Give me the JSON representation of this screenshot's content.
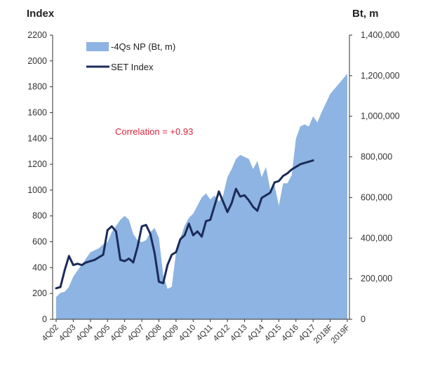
{
  "chart_data": {
    "type": "area+line",
    "left_axis_title": "Index",
    "right_axis_title": "Bt, m",
    "left_ylim": [
      0,
      2200
    ],
    "left_ticks": [
      0,
      200,
      400,
      600,
      800,
      1000,
      1200,
      1400,
      1600,
      1800,
      2000,
      2200
    ],
    "right_ylim": [
      0,
      1400000
    ],
    "right_ticks": [
      0,
      200000,
      400000,
      600000,
      800000,
      1000000,
      1200000,
      1400000
    ],
    "right_tick_labels": [
      "0",
      "200,000",
      "400,000",
      "600,000",
      "800,000",
      "1,000,000",
      "1,200,000",
      "1,400,000"
    ],
    "x_labels": [
      "4Q02",
      "4Q03",
      "4Q04",
      "4Q05",
      "4Q06",
      "4Q07",
      "4Q08",
      "4Q09",
      "4Q10",
      "4Q11",
      "4Q12",
      "4Q13",
      "4Q14",
      "4Q15",
      "4Q16",
      "4Q17",
      "2018F",
      "2019F"
    ],
    "annotation": "Correlation = +0.93",
    "colors": {
      "area": "#8db4e2",
      "line": "#1c2b5a",
      "annotation": "#d7263d",
      "axis": "#333333"
    },
    "series": [
      {
        "name": "-4Qs NP (Bt, m)",
        "kind": "area",
        "axis": "right",
        "x": [
          0,
          0.25,
          0.5,
          0.75,
          1,
          1.25,
          1.5,
          1.75,
          2,
          2.25,
          2.5,
          2.75,
          3,
          3.25,
          3.5,
          3.75,
          4,
          4.25,
          4.5,
          4.75,
          5,
          5.25,
          5.5,
          5.75,
          6,
          6.25,
          6.5,
          6.75,
          7,
          7.25,
          7.5,
          7.75,
          8,
          8.25,
          8.5,
          8.75,
          9,
          9.25,
          9.5,
          9.75,
          10,
          10.25,
          10.5,
          10.75,
          11,
          11.25,
          11.5,
          11.75,
          12,
          12.25,
          12.5,
          12.75,
          13,
          13.25,
          13.5,
          13.75,
          14,
          14.25,
          14.5,
          14.75,
          15,
          15.25,
          15.5,
          16,
          17
        ],
        "values": [
          110000,
          130000,
          135000,
          160000,
          210000,
          240000,
          270000,
          300000,
          330000,
          340000,
          350000,
          370000,
          380000,
          430000,
          460000,
          490000,
          510000,
          490000,
          420000,
          390000,
          380000,
          390000,
          430000,
          450000,
          400000,
          220000,
          150000,
          160000,
          330000,
          400000,
          460000,
          500000,
          520000,
          560000,
          600000,
          620000,
          590000,
          610000,
          580000,
          610000,
          700000,
          740000,
          790000,
          810000,
          800000,
          790000,
          740000,
          780000,
          700000,
          750000,
          640000,
          660000,
          560000,
          670000,
          670000,
          710000,
          890000,
          950000,
          960000,
          950000,
          1000000,
          970000,
          1020000,
          1110000,
          1210000
        ]
      },
      {
        "name": "SET Index",
        "kind": "line",
        "axis": "left",
        "x": [
          0,
          0.25,
          0.5,
          0.75,
          1,
          1.25,
          1.5,
          1.75,
          2,
          2.25,
          2.5,
          2.75,
          3,
          3.25,
          3.5,
          3.75,
          4,
          4.25,
          4.5,
          4.75,
          5,
          5.25,
          5.5,
          5.75,
          6,
          6.25,
          6.5,
          6.75,
          7,
          7.25,
          7.5,
          7.75,
          8,
          8.25,
          8.5,
          8.75,
          9,
          9.25,
          9.5,
          9.75,
          10,
          10.25,
          10.5,
          10.75,
          11,
          11.25,
          11.5,
          11.75,
          12,
          12.25,
          12.5,
          12.75,
          13,
          13.25,
          13.5,
          13.75,
          14,
          14.25,
          14.5,
          14.75,
          15
        ],
        "values": [
          240,
          250,
          380,
          490,
          420,
          430,
          420,
          440,
          450,
          460,
          480,
          500,
          690,
          720,
          680,
          460,
          450,
          470,
          440,
          560,
          720,
          730,
          660,
          510,
          290,
          280,
          420,
          500,
          520,
          620,
          650,
          740,
          650,
          680,
          640,
          760,
          770,
          880,
          990,
          910,
          830,
          900,
          1010,
          950,
          960,
          920,
          870,
          840,
          940,
          960,
          980,
          1060,
          1070,
          1110,
          1130,
          1160,
          1180,
          1200,
          1210,
          1220,
          1230
        ]
      }
    ],
    "legend_placement": "top-left"
  }
}
